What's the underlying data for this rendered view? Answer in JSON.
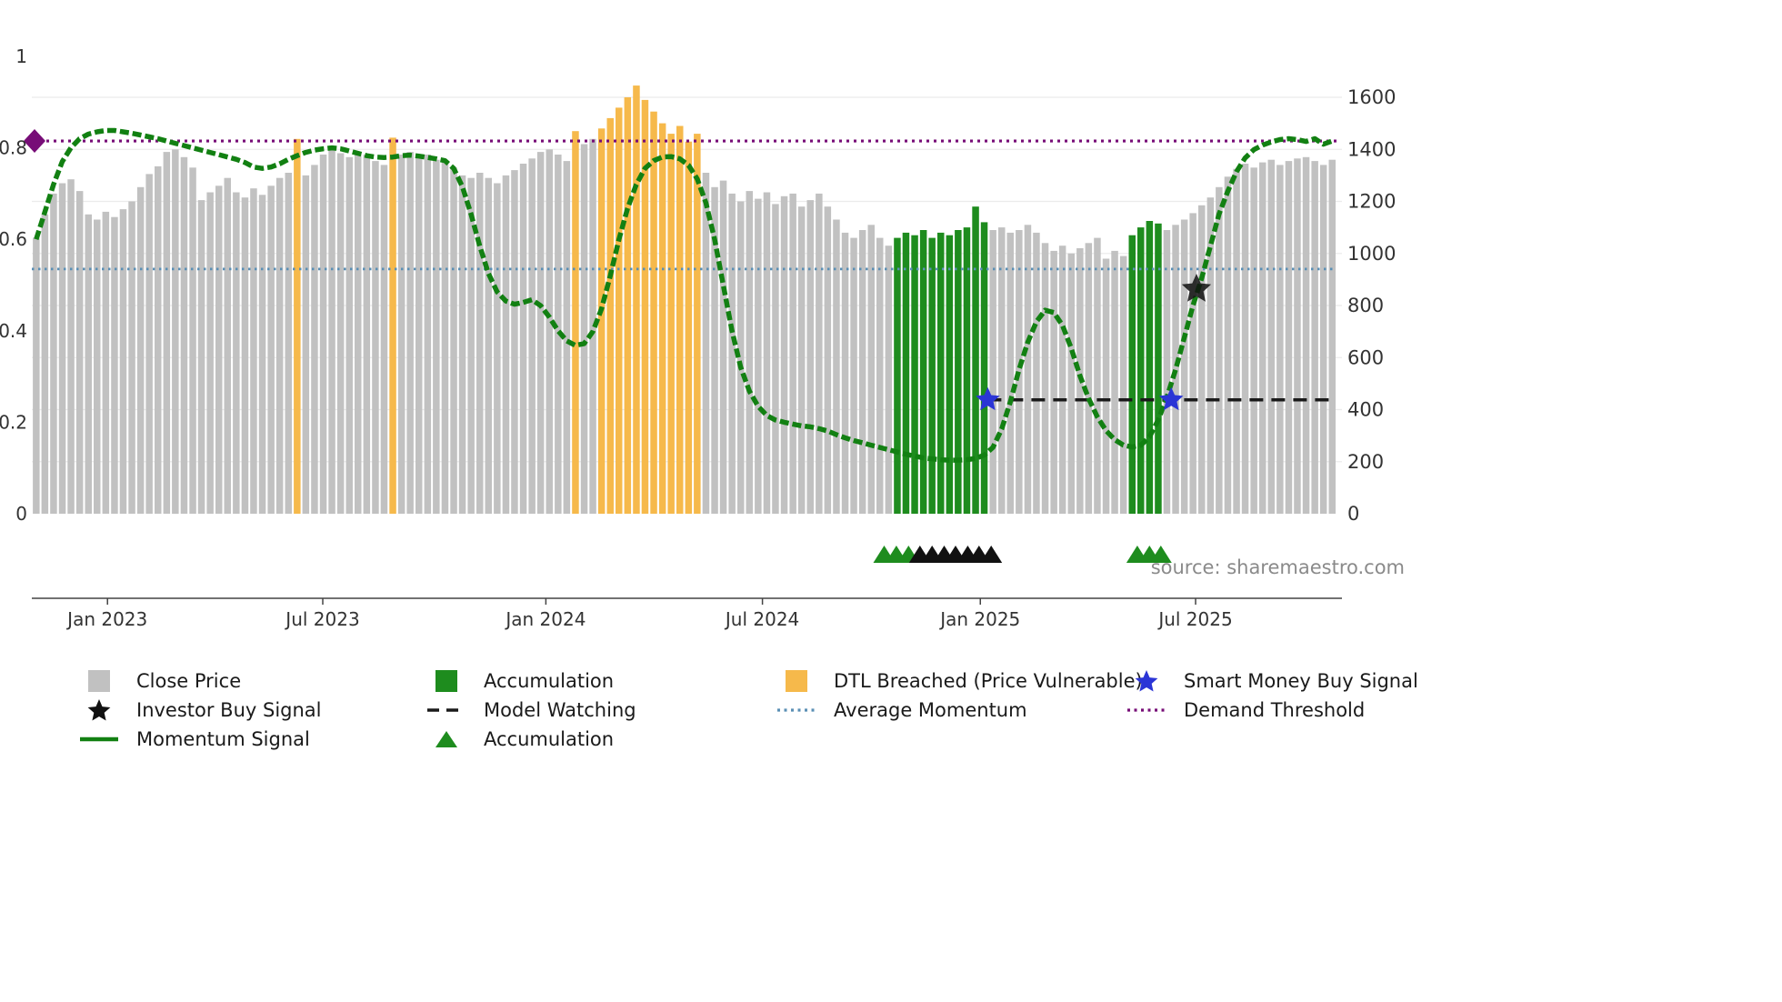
{
  "chart_data": {
    "type": "bar+line",
    "title": "",
    "source": "source: sharemaestro.com",
    "colors": {
      "close_price": "#c1c1c1",
      "accumulation": "#1e8c1e",
      "dtl_breached": "#f6b94b",
      "momentum": "#128012",
      "average_momentum": "#5a8fb5",
      "demand_threshold": "#770d77",
      "model_watching": "#1a1a1a",
      "smart_money": "#2b35d6",
      "investor": "#111111",
      "grid": "#ebebeb",
      "axis_text": "#333333",
      "source_text": "#8a8a8a"
    },
    "left_axis": {
      "range": [
        0,
        1
      ],
      "ticks": [
        1,
        0.8,
        0.6,
        0.4,
        0.2,
        0
      ]
    },
    "right_axis": {
      "range": [
        0,
        1600
      ],
      "ticks": [
        1600,
        1400,
        1200,
        1000,
        800,
        600,
        400,
        200,
        0
      ]
    },
    "x_axis": {
      "ticks": [
        {
          "label": "Jan 2023",
          "pos": 0.058
        },
        {
          "label": "Jul 2023",
          "pos": 0.223
        },
        {
          "label": "Jan 2024",
          "pos": 0.394
        },
        {
          "label": "Jul 2024",
          "pos": 0.56
        },
        {
          "label": "Jan 2025",
          "pos": 0.727
        },
        {
          "label": "Jul 2025",
          "pos": 0.892
        }
      ]
    },
    "series": {
      "close_price": {
        "name": "Close Price",
        "axis": "right",
        "values": [
          1060,
          1150,
          1230,
          1270,
          1285,
          1240,
          1150,
          1130,
          1160,
          1140,
          1170,
          1200,
          1255,
          1305,
          1335,
          1390,
          1400,
          1370,
          1330,
          1205,
          1235,
          1260,
          1290,
          1235,
          1215,
          1250,
          1225,
          1260,
          1290,
          1310,
          1440,
          1300,
          1340,
          1380,
          1400,
          1385,
          1370,
          1390,
          1380,
          1355,
          1340,
          1445,
          1380,
          1390,
          1370,
          1380,
          1360,
          1350,
          1330,
          1300,
          1290,
          1310,
          1290,
          1270,
          1300,
          1320,
          1345,
          1365,
          1390,
          1400,
          1380,
          1355,
          1470,
          1420,
          1440,
          1480,
          1520,
          1560,
          1600,
          1645,
          1590,
          1545,
          1500,
          1460,
          1490,
          1430,
          1460,
          1310,
          1255,
          1280,
          1230,
          1200,
          1240,
          1210,
          1235,
          1190,
          1220,
          1230,
          1180,
          1205,
          1230,
          1180,
          1130,
          1080,
          1060,
          1090,
          1110,
          1060,
          1030,
          1060,
          1080,
          1070,
          1090,
          1060,
          1080,
          1070,
          1090,
          1100,
          1180,
          1120,
          1090,
          1100,
          1080,
          1090,
          1110,
          1080,
          1040,
          1010,
          1030,
          1000,
          1020,
          1040,
          1060,
          980,
          1010,
          990,
          1070,
          1100,
          1125,
          1115,
          1090,
          1110,
          1130,
          1155,
          1185,
          1215,
          1255,
          1295,
          1325,
          1345,
          1330,
          1350,
          1360,
          1340,
          1355,
          1365,
          1370,
          1355,
          1340,
          1360
        ],
        "dtl_breached_indices": [
          30,
          41,
          62,
          65,
          66,
          67,
          68,
          69,
          70,
          71,
          72,
          73,
          74,
          75,
          76
        ],
        "accumulation_indices": [
          99,
          100,
          101,
          102,
          103,
          104,
          105,
          106,
          107,
          108,
          109,
          126,
          127,
          128,
          129
        ]
      },
      "momentum": {
        "name": "Momentum Signal",
        "axis": "left",
        "values": [
          0.6,
          0.66,
          0.72,
          0.77,
          0.8,
          0.82,
          0.83,
          0.835,
          0.838,
          0.838,
          0.835,
          0.832,
          0.828,
          0.824,
          0.82,
          0.815,
          0.81,
          0.805,
          0.8,
          0.795,
          0.79,
          0.785,
          0.78,
          0.775,
          0.768,
          0.758,
          0.755,
          0.758,
          0.765,
          0.775,
          0.783,
          0.79,
          0.795,
          0.798,
          0.8,
          0.798,
          0.793,
          0.788,
          0.783,
          0.78,
          0.779,
          0.78,
          0.783,
          0.784,
          0.782,
          0.779,
          0.776,
          0.772,
          0.755,
          0.715,
          0.655,
          0.585,
          0.525,
          0.485,
          0.465,
          0.458,
          0.462,
          0.468,
          0.455,
          0.43,
          0.4,
          0.378,
          0.368,
          0.372,
          0.398,
          0.448,
          0.52,
          0.6,
          0.668,
          0.72,
          0.755,
          0.772,
          0.78,
          0.781,
          0.776,
          0.762,
          0.732,
          0.68,
          0.6,
          0.5,
          0.4,
          0.32,
          0.268,
          0.235,
          0.215,
          0.205,
          0.2,
          0.196,
          0.192,
          0.19,
          0.186,
          0.181,
          0.173,
          0.166,
          0.16,
          0.155,
          0.15,
          0.145,
          0.14,
          0.135,
          0.13,
          0.126,
          0.122,
          0.12,
          0.118,
          0.117,
          0.117,
          0.118,
          0.121,
          0.128,
          0.145,
          0.185,
          0.245,
          0.315,
          0.375,
          0.42,
          0.445,
          0.44,
          0.412,
          0.362,
          0.302,
          0.252,
          0.212,
          0.182,
          0.162,
          0.15,
          0.146,
          0.15,
          0.168,
          0.205,
          0.255,
          0.315,
          0.385,
          0.455,
          0.515,
          0.585,
          0.655,
          0.705,
          0.748,
          0.778,
          0.796,
          0.806,
          0.813,
          0.818,
          0.82,
          0.818,
          0.814,
          0.82,
          0.808,
          0.815
        ]
      }
    },
    "reference_lines": {
      "demand_threshold": {
        "value": 0.815,
        "style": "dotted"
      },
      "average_momentum": {
        "value": 0.535,
        "style": "dotted"
      },
      "model_watching": {
        "value": 0.249,
        "style": "dashed",
        "start_index": 109.4
      }
    },
    "markers": {
      "demand_diamond": {
        "value": 0.815
      },
      "smart_money_stars": [
        {
          "index": 109.4,
          "value": 0.249
        },
        {
          "index": 130.5,
          "value": 0.249
        }
      ],
      "investor_star": {
        "index": 133.4,
        "value": 0.491
      },
      "triangle_groups": [
        {
          "color": "green",
          "indices": [
            97.5,
            98.9,
            100.3
          ]
        },
        {
          "color": "black",
          "indices": [
            101.6,
            103.0,
            104.4,
            105.7,
            107.1,
            108.4,
            109.8
          ]
        },
        {
          "color": "green",
          "indices": [
            126.6,
            128.0,
            129.3
          ]
        }
      ]
    }
  },
  "legend": {
    "items": [
      {
        "label": "Close Price",
        "swatch": "square",
        "color_key": "close_price"
      },
      {
        "label": "Accumulation",
        "swatch": "square",
        "color_key": "accumulation"
      },
      {
        "label": "DTL Breached (Price Vulnerable)",
        "swatch": "square",
        "color_key": "dtl_breached"
      },
      {
        "label": "Smart Money Buy Signal",
        "swatch": "star",
        "color_key": "smart_money"
      },
      {
        "label": "Investor Buy Signal",
        "swatch": "star",
        "color_key": "investor"
      },
      {
        "label": "Model Watching",
        "swatch": "dashed-line",
        "color_key": "model_watching"
      },
      {
        "label": "Average Momentum",
        "swatch": "dotted-line",
        "color_key": "average_momentum"
      },
      {
        "label": "Demand Threshold",
        "swatch": "dotted-line",
        "color_key": "demand_threshold"
      },
      {
        "label": "Momentum Signal",
        "swatch": "solid-line",
        "color_key": "momentum"
      },
      {
        "label": "Accumulation",
        "swatch": "triangle",
        "color_key": "accumulation"
      }
    ]
  }
}
